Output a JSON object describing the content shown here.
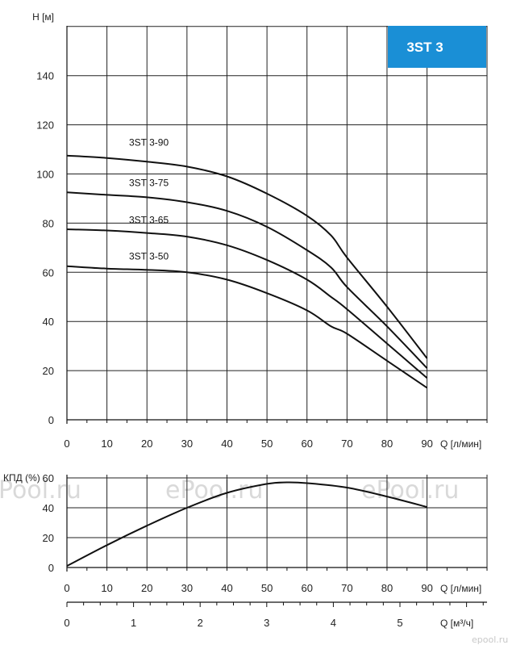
{
  "chart_data": [
    {
      "type": "line",
      "title": "",
      "badge": "3ST 3",
      "badge_color": "#1a8fd6",
      "ylabel": "H [м]",
      "xlabel": "Q [л/мин]",
      "xlim": [
        0,
        105
      ],
      "ylim": [
        0,
        160
      ],
      "x_ticks": [
        0,
        10,
        20,
        30,
        40,
        50,
        60,
        70,
        80,
        90
      ],
      "y_ticks": [
        0,
        20,
        40,
        60,
        80,
        100,
        120,
        140
      ],
      "grid": true,
      "series": [
        {
          "name": "3ST 3-90",
          "x": [
            0,
            10,
            20,
            30,
            40,
            50,
            60,
            66,
            70,
            80,
            90
          ],
          "y": [
            107.5,
            106.5,
            105,
            103,
            99,
            92,
            83,
            75,
            66,
            46,
            25
          ]
        },
        {
          "name": "3ST 3-75",
          "x": [
            0,
            10,
            20,
            30,
            40,
            50,
            60,
            66,
            70,
            80,
            90
          ],
          "y": [
            92.5,
            91.5,
            90.5,
            88.5,
            85,
            78.5,
            69,
            62,
            54,
            38,
            21
          ]
        },
        {
          "name": "3ST 3-65",
          "x": [
            0,
            10,
            20,
            30,
            40,
            50,
            60,
            66,
            70,
            80,
            90
          ],
          "y": [
            77.5,
            77,
            76,
            74.5,
            71,
            65,
            57,
            50,
            45,
            31,
            17
          ]
        },
        {
          "name": "3ST 3-50",
          "x": [
            0,
            10,
            20,
            30,
            40,
            50,
            60,
            66,
            70,
            80,
            90
          ],
          "y": [
            62.5,
            61.5,
            61,
            60,
            57,
            51.5,
            44.5,
            38,
            35,
            24,
            13
          ]
        }
      ]
    },
    {
      "type": "line",
      "title": "",
      "ylabel": "КПД (%)",
      "xlabel": "Q [л/мин]",
      "xlim": [
        0,
        105
      ],
      "ylim": [
        0,
        60
      ],
      "x_ticks": [
        0,
        10,
        20,
        30,
        40,
        50,
        60,
        70,
        80,
        90
      ],
      "y_ticks": [
        0,
        20,
        40,
        60
      ],
      "grid": true,
      "series": [
        {
          "name": "",
          "x": [
            0,
            10,
            20,
            30,
            40,
            50,
            55,
            60,
            70,
            80,
            90
          ],
          "y": [
            1,
            15,
            28,
            40,
            50,
            56,
            57,
            56.5,
            53.5,
            47.5,
            40.5
          ]
        }
      ],
      "secondary_xlabel": "Q [м³/ч]",
      "secondary_x_ticks": [
        0,
        1,
        2,
        3,
        4,
        5
      ]
    }
  ],
  "watermarks": [
    "Pool.ru",
    "ePool.ru",
    "ePool.ru"
  ],
  "corner_mark": "epool.ru"
}
